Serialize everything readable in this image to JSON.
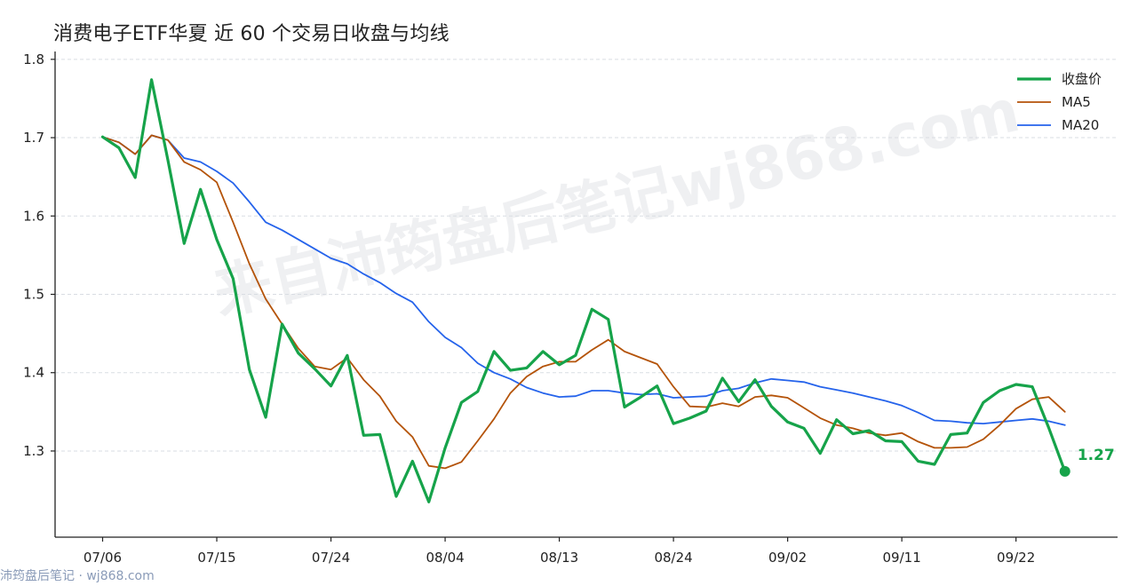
{
  "colors": {
    "close": "#16a34a",
    "ma5": "#b45309",
    "ma20": "#2563eb",
    "grid": "#d9dde3",
    "axis": "#222222"
  },
  "watermark": "来自沛筠盘后笔记wj868.com",
  "footer_credit": "沛筠盘后笔记 · wj868.com",
  "chart_data": {
    "type": "line",
    "title": "消费电子ETF华夏 近 60 个交易日收盘与均线",
    "xlabel": "",
    "ylabel": "",
    "ylim": [
      1.19,
      1.81
    ],
    "yticks": [
      "1.3",
      "1.4",
      "1.5",
      "1.6",
      "1.7",
      "1.8"
    ],
    "ytick_values": [
      1.3,
      1.4,
      1.5,
      1.6,
      1.7,
      1.8
    ],
    "xtick_labels": [
      "07/06",
      "07/15",
      "07/24",
      "08/04",
      "08/13",
      "08/24",
      "09/02",
      "09/11",
      "09/22"
    ],
    "xtick_indices": [
      0,
      7,
      14,
      21,
      28,
      35,
      42,
      49,
      56
    ],
    "grid": "horizontal dashed",
    "legend_position": "top-right",
    "end_label": "1.27",
    "series": [
      {
        "name": "收盘价",
        "color_key": "close",
        "values": [
          1.701,
          1.687,
          1.649,
          1.774,
          1.672,
          1.565,
          1.634,
          1.57,
          1.52,
          1.404,
          1.343,
          1.462,
          1.425,
          1.405,
          1.383,
          1.422,
          1.32,
          1.321,
          1.242,
          1.287,
          1.235,
          1.304,
          1.362,
          1.376,
          1.427,
          1.403,
          1.406,
          1.427,
          1.41,
          1.422,
          1.481,
          1.468,
          1.356,
          1.369,
          1.383,
          1.335,
          1.342,
          1.351,
          1.393,
          1.363,
          1.391,
          1.357,
          1.337,
          1.329,
          1.297,
          1.34,
          1.322,
          1.326,
          1.313,
          1.312,
          1.287,
          1.283,
          1.321,
          1.323,
          1.362,
          1.377,
          1.385,
          1.382,
          1.33,
          1.274
        ]
      },
      {
        "name": "MA5",
        "color_key": "ma5",
        "values": [
          1.701,
          1.694,
          1.679,
          1.703,
          1.697,
          1.669,
          1.659,
          1.643,
          1.592,
          1.539,
          1.494,
          1.462,
          1.431,
          1.408,
          1.404,
          1.419,
          1.391,
          1.37,
          1.338,
          1.318,
          1.281,
          1.278,
          1.286,
          1.313,
          1.341,
          1.374,
          1.395,
          1.408,
          1.414,
          1.414,
          1.429,
          1.442,
          1.427,
          1.419,
          1.411,
          1.382,
          1.357,
          1.356,
          1.361,
          1.357,
          1.369,
          1.371,
          1.368,
          1.355,
          1.342,
          1.333,
          1.329,
          1.323,
          1.32,
          1.323,
          1.312,
          1.304,
          1.304,
          1.305,
          1.315,
          1.333,
          1.354,
          1.366,
          1.369,
          1.35
        ]
      },
      {
        "name": "MA20",
        "color_key": "ma20",
        "values": [
          1.701,
          1.694,
          1.679,
          1.703,
          1.697,
          1.674,
          1.669,
          1.657,
          1.642,
          1.618,
          1.592,
          1.582,
          1.57,
          1.558,
          1.546,
          1.539,
          1.526,
          1.515,
          1.501,
          1.49,
          1.465,
          1.445,
          1.432,
          1.412,
          1.4,
          1.392,
          1.381,
          1.374,
          1.369,
          1.37,
          1.377,
          1.377,
          1.374,
          1.372,
          1.373,
          1.368,
          1.369,
          1.37,
          1.377,
          1.38,
          1.387,
          1.392,
          1.39,
          1.388,
          1.382,
          1.378,
          1.374,
          1.369,
          1.364,
          1.358,
          1.349,
          1.339,
          1.338,
          1.336,
          1.335,
          1.337,
          1.339,
          1.341,
          1.338,
          1.333
        ]
      }
    ]
  }
}
